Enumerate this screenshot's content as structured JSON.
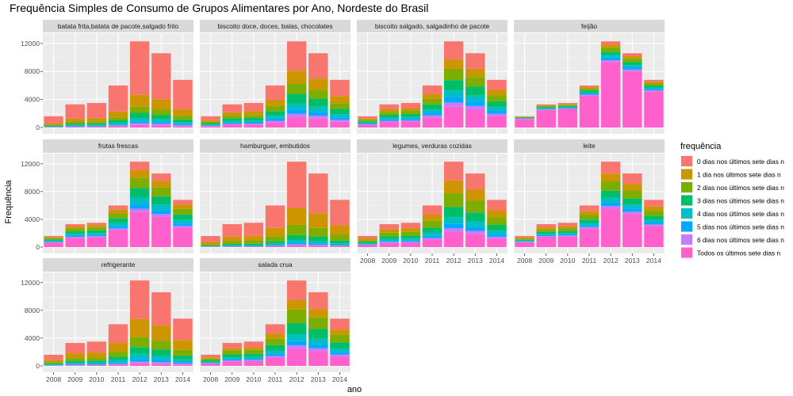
{
  "chart_data": {
    "type": "bar",
    "stacked": true,
    "title": "Frequência Simples de Consumo de Grupos Alimentares por Ano, Nordeste do Brasil",
    "xlabel": "ano",
    "ylabel": "Frequência",
    "ylim": [
      0,
      13000
    ],
    "yticks": [
      0,
      4000,
      8000,
      12000
    ],
    "categories": [
      "2008",
      "2009",
      "2010",
      "2011",
      "2012",
      "2013",
      "2014"
    ],
    "totals": [
      1600,
      3300,
      3500,
      6000,
      12300,
      10600,
      6800
    ],
    "legend": {
      "title": "frequência",
      "position": "right",
      "entries": [
        {
          "label": "0 dias nos últimos sete dias n",
          "color": "#F8766D"
        },
        {
          "label": "1 dia nos últimos sete dias n",
          "color": "#CD9600"
        },
        {
          "label": "2 dias nos últimos sete dias n",
          "color": "#7CAE00"
        },
        {
          "label": "3 dias nos últimos sete dias n",
          "color": "#00BE67"
        },
        {
          "label": "4 dias nos últimos sete dias n",
          "color": "#00BFC4"
        },
        {
          "label": "5 dias nos últimos sete dias n",
          "color": "#00A9FF"
        },
        {
          "label": "6 dias nos últimos sete dias n",
          "color": "#C77CFF"
        },
        {
          "label": "Todos os últimos sete dias n",
          "color": "#FF61CC"
        }
      ]
    },
    "series_order_note": "stack order bottom-to-top: Todos, 6, 5, 4, 3, 2, 1, 0 dias",
    "grid": true,
    "panels": [
      {
        "label": "batata frita,batata de pacote,salgado frito",
        "shares": [
          0.03,
          0.02,
          0.02,
          0.04,
          0.06,
          0.07,
          0.14,
          0.62
        ]
      },
      {
        "label": "biscoito doce, doces, balas, chocolates",
        "shares": [
          0.12,
          0.04,
          0.05,
          0.07,
          0.11,
          0.12,
          0.15,
          0.34
        ]
      },
      {
        "label": "biscoito salgado, salgadinho de pacote",
        "shares": [
          0.24,
          0.05,
          0.06,
          0.08,
          0.12,
          0.13,
          0.11,
          0.21
        ]
      },
      {
        "label": "feijão",
        "shares": [
          0.76,
          0.02,
          0.03,
          0.03,
          0.04,
          0.05,
          0.03,
          0.04
        ]
      },
      {
        "label": "frutas frescas",
        "shares": [
          0.41,
          0.04,
          0.05,
          0.08,
          0.11,
          0.12,
          0.09,
          0.1
        ]
      },
      {
        "label": "hamburguer, embutidos",
        "shares": [
          0.02,
          0.01,
          0.02,
          0.03,
          0.06,
          0.12,
          0.2,
          0.54
        ]
      },
      {
        "label": "legumes, verduras cozidas",
        "shares": [
          0.18,
          0.04,
          0.05,
          0.08,
          0.12,
          0.16,
          0.15,
          0.22
        ]
      },
      {
        "label": "leite",
        "shares": [
          0.45,
          0.03,
          0.04,
          0.06,
          0.08,
          0.11,
          0.09,
          0.14
        ]
      },
      {
        "label": "refrigerante",
        "shares": [
          0.03,
          0.02,
          0.03,
          0.06,
          0.08,
          0.12,
          0.21,
          0.45
        ]
      },
      {
        "label": "salada crua",
        "shares": [
          0.2,
          0.04,
          0.05,
          0.08,
          0.13,
          0.16,
          0.11,
          0.23
        ]
      }
    ]
  }
}
